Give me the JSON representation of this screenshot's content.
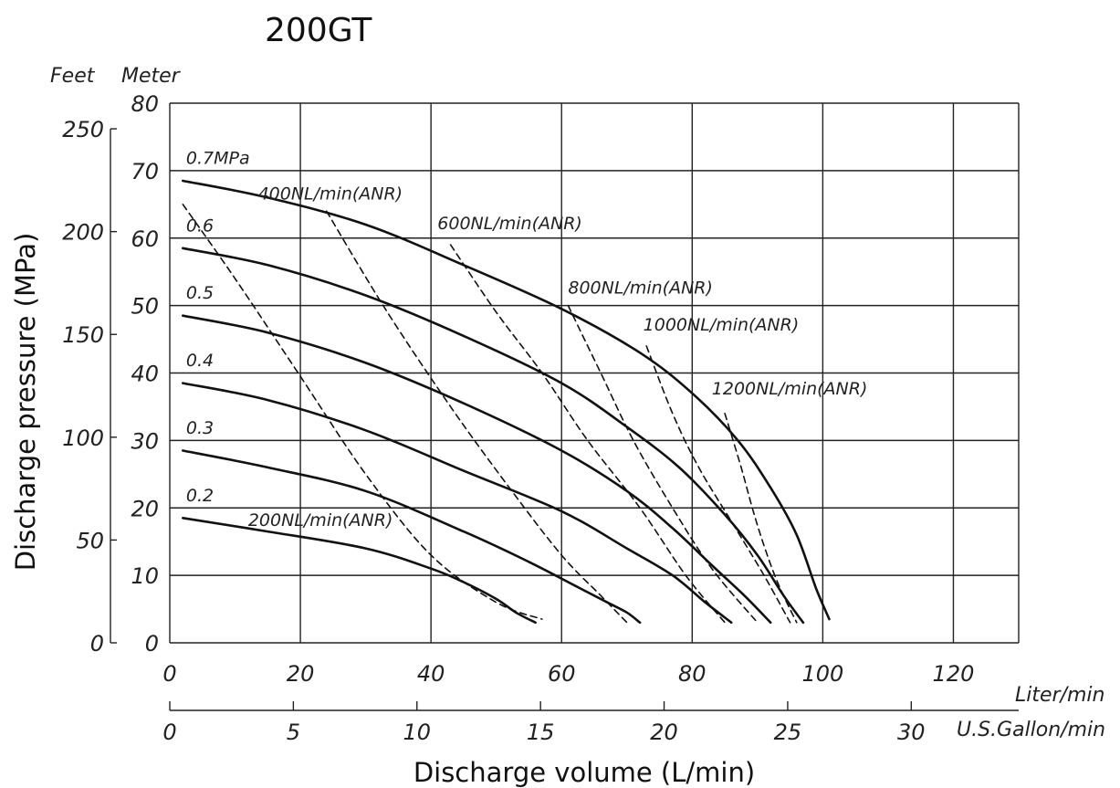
{
  "chart_data": {
    "type": "line",
    "title": "200GT",
    "xlabel": "Discharge volume (L/min)",
    "ylabel": "Discharge pressure (MPa)",
    "x_unit_primary": "Liter/min",
    "x_unit_secondary": "U.S.Gallon/min",
    "y_unit_primary": "Meter",
    "y_unit_secondary": "Feet",
    "xlim": [
      0,
      130
    ],
    "ylim": [
      0,
      80
    ],
    "x_ticks": [
      0,
      20,
      40,
      60,
      80,
      100,
      120
    ],
    "y_ticks": [
      0,
      10,
      20,
      30,
      40,
      50,
      60,
      70,
      80
    ],
    "x_secondary_ticks": [
      0,
      5,
      10,
      15,
      20,
      25,
      30
    ],
    "y_secondary_ticks": [
      0,
      50,
      100,
      150,
      200,
      250
    ],
    "grid": true,
    "series": [
      {
        "name": "0.7MPa",
        "style": "solid",
        "x": [
          2,
          15,
          30,
          45,
          60,
          72,
          80,
          87,
          92,
          96,
          99,
          101
        ],
        "y": [
          68.5,
          66,
          62,
          56,
          49.5,
          43,
          37,
          30,
          23,
          16,
          8,
          3.5
        ]
      },
      {
        "name": "0.6",
        "style": "solid",
        "x": [
          2,
          15,
          30,
          45,
          60,
          70,
          78,
          85,
          90,
          94,
          97
        ],
        "y": [
          58.5,
          56,
          51.5,
          45.5,
          38.5,
          32,
          26,
          19,
          13,
          7,
          3
        ]
      },
      {
        "name": "0.5",
        "style": "solid",
        "x": [
          2,
          15,
          30,
          45,
          60,
          70,
          77,
          83,
          88,
          92
        ],
        "y": [
          48.5,
          46,
          41.5,
          35.5,
          28.5,
          22.5,
          17,
          11.5,
          7,
          3
        ]
      },
      {
        "name": "0.4",
        "style": "solid",
        "x": [
          2,
          15,
          30,
          45,
          60,
          70,
          77,
          82,
          86
        ],
        "y": [
          38.5,
          36,
          31.5,
          25.5,
          19.5,
          14,
          10,
          6,
          3
        ]
      },
      {
        "name": "0.3",
        "style": "solid",
        "x": [
          2,
          15,
          30,
          45,
          55,
          62,
          67,
          70,
          72
        ],
        "y": [
          28.5,
          26,
          22.5,
          16.5,
          12,
          8.5,
          6,
          4.5,
          3
        ]
      },
      {
        "name": "0.2",
        "style": "solid",
        "x": [
          2,
          15,
          30,
          40,
          45,
          50,
          53,
          56
        ],
        "y": [
          18.5,
          16.5,
          14,
          11,
          9,
          6.5,
          4.5,
          3
        ]
      },
      {
        "name": "200NL/min(ANR)",
        "style": "dashed",
        "x": [
          2,
          10,
          20,
          30,
          40,
          50,
          57
        ],
        "y": [
          65,
          54,
          39.5,
          25,
          13,
          6,
          3.5
        ]
      },
      {
        "name": "400NL/min(ANR)",
        "style": "dashed",
        "x": [
          24,
          33,
          43,
          52,
          60,
          66,
          70
        ],
        "y": [
          64,
          49.5,
          35,
          23,
          13,
          7,
          3
        ]
      },
      {
        "name": "600NL/min(ANR)",
        "style": "dashed",
        "x": [
          43,
          50,
          57,
          64,
          72,
          79,
          85
        ],
        "y": [
          59,
          49,
          40,
          30,
          20,
          10,
          3
        ]
      },
      {
        "name": "800NL/min(ANR)",
        "style": "dashed",
        "x": [
          61,
          66,
          71,
          77,
          83,
          90
        ],
        "y": [
          50,
          40,
          30,
          20,
          11,
          3
        ]
      },
      {
        "name": "1000NL/min(ANR)",
        "style": "dashed",
        "x": [
          73,
          77,
          81,
          86,
          91,
          95
        ],
        "y": [
          44,
          34,
          26,
          18,
          10,
          3
        ]
      },
      {
        "name": "1200NL/min(ANR)",
        "style": "dashed",
        "x": [
          85,
          87.5,
          89.5,
          91.5,
          93.5,
          96
        ],
        "y": [
          34,
          26,
          19,
          13,
          8,
          3
        ]
      }
    ],
    "annotations": [
      {
        "text": "0.7MPa",
        "x": 2.5,
        "y": 71
      },
      {
        "text": "0.6",
        "x": 2.5,
        "y": 61
      },
      {
        "text": "0.5",
        "x": 2.5,
        "y": 51
      },
      {
        "text": "0.4",
        "x": 2.5,
        "y": 41
      },
      {
        "text": "0.3",
        "x": 2.5,
        "y": 31
      },
      {
        "text": "0.2",
        "x": 2.5,
        "y": 21
      },
      {
        "text": "200NL/min(ANR)",
        "x": 12,
        "y": 17.3
      },
      {
        "text": "400NL/min(ANR)",
        "x": 13.5,
        "y": 65.7
      },
      {
        "text": "600NL/min(ANR)",
        "x": 41,
        "y": 61.3
      },
      {
        "text": "800NL/min(ANR)",
        "x": 61,
        "y": 51.8
      },
      {
        "text": "1000NL/min(ANR)",
        "x": 72.5,
        "y": 46.3
      },
      {
        "text": "1200NL/min(ANR)",
        "x": 83,
        "y": 36.8
      }
    ]
  }
}
